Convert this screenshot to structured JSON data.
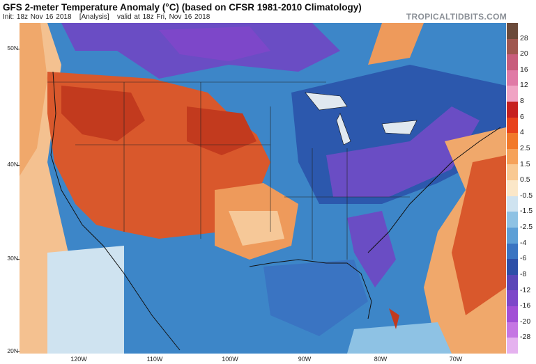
{
  "header": {
    "title": "GFS 2-meter Temperature Anomaly (°C) (based on CFSR 1981-2010 Climatology)",
    "init": "Init: 18z Nov 16 2018",
    "analysis": "[Analysis]",
    "valid": "valid at 18z Fri, Nov 16 2018",
    "brand": "TROPICALTIDBITS.COM"
  },
  "axes": {
    "latitudes": [
      "50N",
      "40N",
      "30N",
      "20N"
    ],
    "longitudes": [
      "120W",
      "110W",
      "100W",
      "90W",
      "80W",
      "70W"
    ]
  },
  "colorbar": {
    "labels": [
      "28",
      "20",
      "16",
      "12",
      "8",
      "6",
      "4",
      "2.5",
      "1.5",
      "0.5",
      "-0.5",
      "-1.5",
      "-2.5",
      "-4",
      "-6",
      "-8",
      "-12",
      "-16",
      "-20",
      "-28"
    ],
    "colors": [
      "#6b4a3a",
      "#a0574f",
      "#c85d7c",
      "#e07aa6",
      "#f0a4c4",
      "#c7201f",
      "#e8421c",
      "#f2792a",
      "#f6a25a",
      "#f9c993",
      "#fbe7c8",
      "#cfe3f0",
      "#8ec2e4",
      "#5d9fd6",
      "#3a74c2",
      "#2d4fa8",
      "#5b47b8",
      "#7d47c9",
      "#a24fd6",
      "#c576e3",
      "#e5b2ef"
    ]
  },
  "regions": {
    "warm_west": "#d9582c",
    "hot_core": "#c23a1e",
    "warm_plains": "#ee9a5b",
    "pale_warm": "#f6c898",
    "cool_blue": "#3d86c8",
    "deep_blue": "#2c58ad",
    "purple": "#6a4dc4",
    "ocean_warm": "#f2b98a"
  }
}
